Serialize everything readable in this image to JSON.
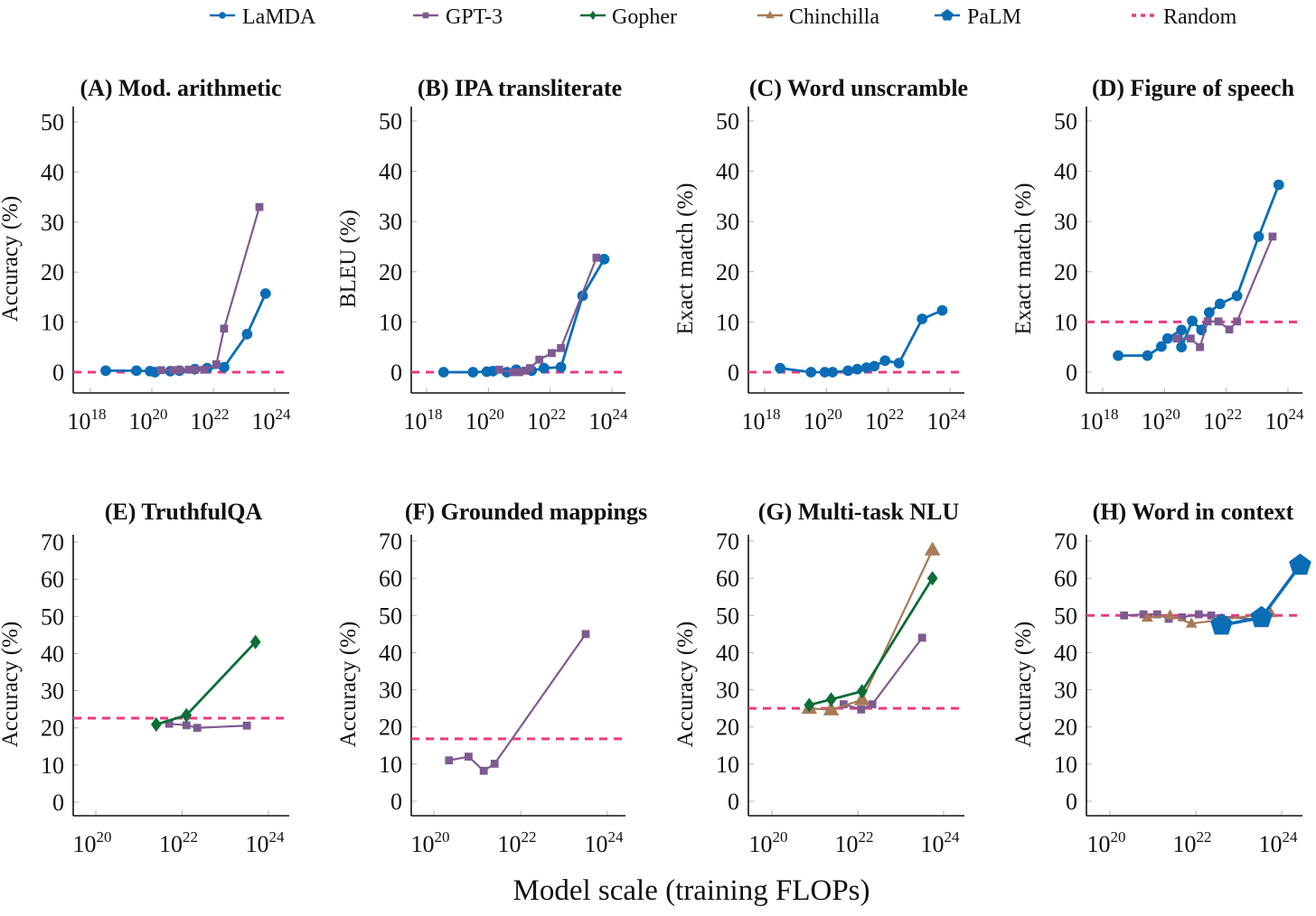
{
  "legend": [
    {
      "name": "LaMDA",
      "color": "#0a6db5",
      "marker": "circle",
      "style": "solid"
    },
    {
      "name": "GPT-3",
      "color": "#7e5a92",
      "marker": "square",
      "style": "solid"
    },
    {
      "name": "Gopher",
      "color": "#0c6e36",
      "marker": "diamond",
      "style": "solid"
    },
    {
      "name": "Chinchilla",
      "color": "#a87a56",
      "marker": "triangle",
      "style": "solid"
    },
    {
      "name": "PaLM",
      "color": "#0a6db5",
      "marker": "pentagon",
      "style": "solid"
    },
    {
      "name": "Random",
      "color": "#ec3a82",
      "marker": "none",
      "style": "dashed"
    }
  ],
  "xlabel": "Model scale (training FLOPs)",
  "chart_data": [
    {
      "id": "A",
      "type": "line",
      "title": "(A) Mod. arithmetic",
      "ylabel": "Accuracy (%)",
      "xscale": "log10",
      "xlim_exp": [
        17.45,
        24.5
      ],
      "xticks_exp": [
        18,
        20,
        22,
        24
      ],
      "ylim": [
        -4,
        52
      ],
      "yticks": [
        0,
        10,
        20,
        30,
        40,
        50
      ],
      "random": 0,
      "series": [
        {
          "name": "LaMDA",
          "x_exp": [
            18.5,
            19.5,
            19.94,
            20.1,
            20.6,
            20.9,
            21.4,
            21.8,
            22.35,
            23.1,
            23.7
          ],
          "y": [
            0.3,
            0.3,
            0.2,
            0.0,
            0.2,
            0.3,
            0.6,
            0.8,
            1.0,
            7.6,
            15.7
          ]
        },
        {
          "name": "GPT-3",
          "x_exp": [
            20.3,
            20.7,
            20.9,
            21.2,
            21.4,
            21.7,
            22.1,
            22.35,
            23.5
          ],
          "y": [
            0.4,
            0.4,
            0.4,
            0.5,
            0.5,
            0.5,
            1.6,
            8.7,
            33.0
          ]
        }
      ]
    },
    {
      "id": "B",
      "type": "line",
      "title": "(B) IPA transliterate",
      "ylabel": "BLEU (%)",
      "xscale": "log10",
      "xlim_exp": [
        17.45,
        24.5
      ],
      "xticks_exp": [
        18,
        20,
        22,
        24
      ],
      "ylim": [
        -4,
        52
      ],
      "yticks": [
        0,
        10,
        20,
        30,
        40,
        50
      ],
      "random": 0,
      "series": [
        {
          "name": "LaMDA",
          "x_exp": [
            18.55,
            19.5,
            19.95,
            20.15,
            20.6,
            20.9,
            21.4,
            21.8,
            22.35,
            23.05,
            23.75
          ],
          "y": [
            0.0,
            0.0,
            0.1,
            0.2,
            0.0,
            0.5,
            0.3,
            0.8,
            1.0,
            15.2,
            22.5
          ]
        },
        {
          "name": "GPT-3",
          "x_exp": [
            20.35,
            20.8,
            21.0,
            21.2,
            21.35,
            21.65,
            22.05,
            22.35,
            23.5
          ],
          "y": [
            0.5,
            0.0,
            0.0,
            0.3,
            0.8,
            2.5,
            3.8,
            4.8,
            22.8
          ]
        }
      ]
    },
    {
      "id": "C",
      "type": "line",
      "title": "(C) Word unscramble",
      "ylabel": "Exact match (%)",
      "xscale": "log10",
      "xlim_exp": [
        17.45,
        24.5
      ],
      "xticks_exp": [
        18,
        20,
        22,
        24
      ],
      "ylim": [
        -4,
        52
      ],
      "yticks": [
        0,
        10,
        20,
        30,
        40,
        50
      ],
      "random": 0,
      "series": [
        {
          "name": "LaMDA",
          "x_exp": [
            18.5,
            19.5,
            19.95,
            20.2,
            20.7,
            21.0,
            21.3,
            21.55,
            21.9,
            22.35,
            23.1,
            23.75
          ],
          "y": [
            0.8,
            0.0,
            0.0,
            0.0,
            0.3,
            0.6,
            0.9,
            1.2,
            2.3,
            1.8,
            10.6,
            12.3
          ]
        }
      ]
    },
    {
      "id": "D",
      "type": "line",
      "title": "(D) Figure of speech",
      "ylabel": "Exact match (%)",
      "xscale": "log10",
      "xlim_exp": [
        17.45,
        24.5
      ],
      "xticks_exp": [
        18,
        20,
        22,
        24
      ],
      "ylim": [
        -4,
        52
      ],
      "yticks": [
        0,
        10,
        20,
        30,
        40,
        50
      ],
      "random": 10,
      "series": [
        {
          "name": "LaMDA",
          "x_exp": [
            18.5,
            19.45,
            19.9,
            20.1,
            20.55,
            20.55,
            20.9,
            21.2,
            21.45,
            21.8,
            22.35,
            23.05,
            23.7
          ],
          "y": [
            3.3,
            3.3,
            5.1,
            6.7,
            8.4,
            5.0,
            10.2,
            8.4,
            11.9,
            13.6,
            15.2,
            27.0,
            37.3
          ]
        },
        {
          "name": "GPT-3",
          "x_exp": [
            20.4,
            20.85,
            21.15,
            21.4,
            21.75,
            22.1,
            22.35,
            23.5
          ],
          "y": [
            6.7,
            6.7,
            5.0,
            10.1,
            10.1,
            8.5,
            10.1,
            27.0
          ]
        }
      ]
    },
    {
      "id": "E",
      "type": "line",
      "title": "(E) TruthfulQA",
      "ylabel": "Accuracy (%)",
      "xscale": "log10",
      "xlim_exp": [
        19.5,
        24.5
      ],
      "xticks_exp": [
        20,
        22,
        24
      ],
      "ylim": [
        -4,
        72
      ],
      "yticks": [
        0,
        10,
        20,
        30,
        40,
        50,
        60,
        70
      ],
      "random": 22.6,
      "series": [
        {
          "name": "GPT-3",
          "x_exp": [
            21.7,
            22.1,
            22.35,
            23.5
          ],
          "y": [
            21.1,
            20.7,
            20.0,
            20.6
          ]
        },
        {
          "name": "Gopher",
          "x_exp": [
            21.4,
            22.1,
            23.7
          ],
          "y": [
            20.9,
            23.4,
            43.1
          ]
        }
      ]
    },
    {
      "id": "F",
      "type": "line",
      "title": "(F) Grounded mappings",
      "ylabel": "Accuracy (%)",
      "xscale": "log10",
      "xlim_exp": [
        19.5,
        24.5
      ],
      "xticks_exp": [
        20,
        22,
        24
      ],
      "ylim": [
        -4,
        72
      ],
      "yticks": [
        0,
        10,
        20,
        30,
        40,
        50,
        60,
        70
      ],
      "random": 16.8,
      "series": [
        {
          "name": "GPT-3",
          "x_exp": [
            20.35,
            20.8,
            21.15,
            21.4,
            23.5
          ],
          "y": [
            11.0,
            12.0,
            8.2,
            10.1,
            45.0
          ]
        }
      ]
    },
    {
      "id": "G",
      "type": "line",
      "title": "(G) Multi-task NLU",
      "ylabel": "Accuracy (%)",
      "xscale": "log10",
      "xlim_exp": [
        19.5,
        24.5
      ],
      "xticks_exp": [
        20,
        22,
        24
      ],
      "ylim": [
        -4,
        72
      ],
      "yticks": [
        0,
        10,
        20,
        30,
        40,
        50,
        60,
        70
      ],
      "random": 25,
      "series": [
        {
          "name": "GPT-3",
          "x_exp": [
            21.67,
            22.08,
            22.34,
            23.5
          ],
          "y": [
            26.1,
            24.7,
            26.1,
            44.0
          ]
        },
        {
          "name": "Chinchilla",
          "x_exp": [
            20.87,
            21.38,
            22.1,
            23.74
          ],
          "y": [
            25.0,
            24.6,
            27.3,
            67.6
          ]
        },
        {
          "name": "Gopher",
          "x_exp": [
            20.87,
            21.38,
            22.1,
            23.74
          ],
          "y": [
            25.9,
            27.4,
            29.6,
            60.0
          ]
        }
      ]
    },
    {
      "id": "H",
      "type": "line",
      "title": "(H) Word in context",
      "ylabel": "Accuracy (%)",
      "xscale": "log10",
      "xlim_exp": [
        19.5,
        24.5
      ],
      "xticks_exp": [
        20,
        22,
        24
      ],
      "ylim": [
        -4,
        72
      ],
      "yticks": [
        0,
        10,
        20,
        30,
        40,
        50,
        60,
        70
      ],
      "random": 50,
      "series": [
        {
          "name": "GPT-3",
          "x_exp": [
            20.33,
            20.78,
            21.1,
            21.37,
            21.68,
            22.07,
            22.36,
            23.5
          ],
          "y": [
            50.0,
            50.3,
            50.3,
            49.1,
            49.5,
            50.3,
            50.0,
            48.8
          ]
        },
        {
          "name": "Chinchilla",
          "x_exp": [
            20.87,
            21.4,
            21.9,
            23.75
          ],
          "y": [
            49.4,
            50.0,
            47.8,
            50.6
          ]
        },
        {
          "name": "PaLM",
          "x_exp": [
            22.6,
            23.53,
            24.43
          ],
          "y": [
            47.4,
            49.4,
            63.5
          ]
        }
      ]
    }
  ]
}
